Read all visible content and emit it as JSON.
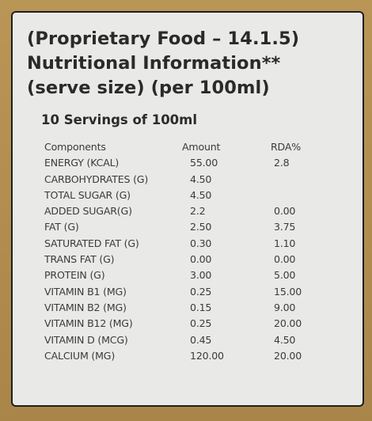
{
  "title": {
    "line1": "(Proprietary Food – 14.1.5)",
    "line2": "Nutritional Information**",
    "line3": "(serve size) (per 100ml)"
  },
  "servings": "10 Servings of 100ml",
  "table": {
    "headers": [
      "Components",
      "Amount",
      "RDA%"
    ],
    "rows": [
      [
        "ENERGY (KCAL)",
        "55.00",
        "2.8"
      ],
      [
        "CARBOHYDRATES (G)",
        "4.50",
        ""
      ],
      [
        "TOTAL SUGAR (G)",
        "4.50",
        ""
      ],
      [
        "ADDED SUGAR(G)",
        "2.2",
        "0.00"
      ],
      [
        "FAT (G)",
        "2.50",
        "3.75"
      ],
      [
        "SATURATED FAT (G)",
        "0.30",
        "1.10"
      ],
      [
        "TRANS FAT (G)",
        "0.00",
        "0.00"
      ],
      [
        "PROTEIN (G)",
        "3.00",
        "5.00"
      ],
      [
        "VITAMIN B1 (MG)",
        "0.25",
        "15.00"
      ],
      [
        "VITAMIN B2 (MG)",
        "0.15",
        "9.00"
      ],
      [
        "VITAMIN B12 (MG)",
        "0.25",
        "20.00"
      ],
      [
        "VITAMIN D (MCG)",
        "0.45",
        "4.50"
      ],
      [
        "CALCIUM (MG)",
        "120.00",
        "20.00"
      ]
    ]
  }
}
